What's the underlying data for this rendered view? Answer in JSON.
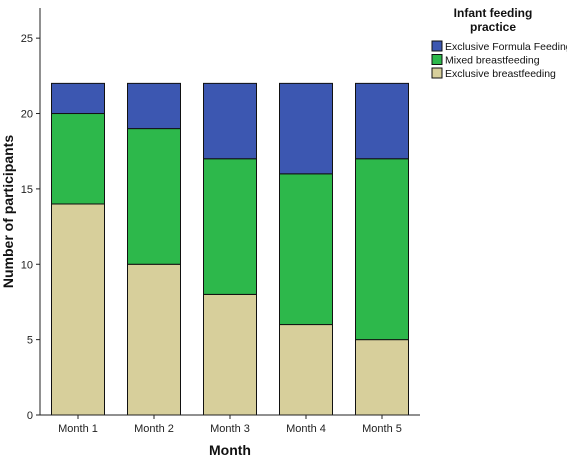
{
  "chart_data": {
    "type": "bar",
    "stacked": true,
    "categories": [
      "Month 1",
      "Month 2",
      "Month 3",
      "Month 4",
      "Month 5"
    ],
    "series": [
      {
        "name": "Exclusive breastfeeding",
        "color": "#d7cf9b",
        "values": [
          14,
          10,
          8,
          6,
          5
        ]
      },
      {
        "name": "Mixed breastfeeding",
        "color": "#2db84b",
        "values": [
          6,
          9,
          9,
          10,
          12
        ]
      },
      {
        "name": "Exclusive Formula Feeding",
        "color": "#3c57b1",
        "values": [
          2,
          3,
          5,
          6,
          5
        ]
      }
    ],
    "xlabel": "Month",
    "ylabel": "Number of participants",
    "ylim": [
      0,
      27
    ],
    "yticks": [
      0,
      5,
      10,
      15,
      20,
      25
    ],
    "legend": {
      "title": "Infant feeding practice",
      "title_lines": [
        "Infant feeding",
        "practice"
      ],
      "placement": "top-right",
      "order": [
        "Exclusive Formula Feeding",
        "Mixed breastfeeding",
        "Exclusive breastfeeding"
      ]
    },
    "grid": false
  }
}
